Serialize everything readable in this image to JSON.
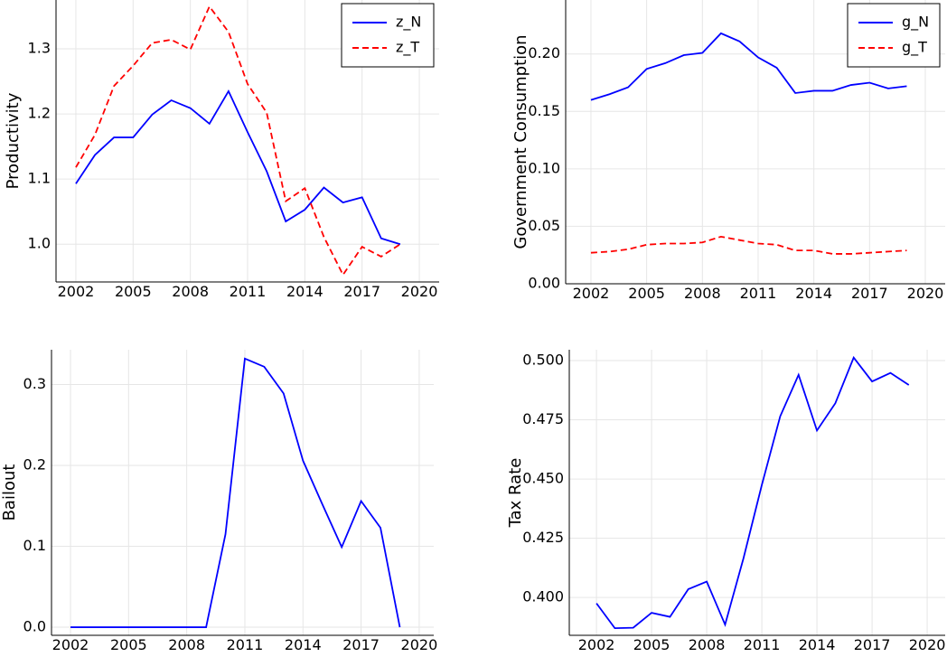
{
  "chart_data": [
    {
      "type": "line",
      "ylabel": "Productivity",
      "x": [
        2002,
        2003,
        2004,
        2005,
        2006,
        2007,
        2008,
        2009,
        2010,
        2011,
        2012,
        2013,
        2014,
        2015,
        2016,
        2017,
        2018,
        2019
      ],
      "xlim": [
        2000.96,
        2021.04
      ],
      "xticks": [
        2002,
        2005,
        2008,
        2011,
        2014,
        2017,
        2020
      ],
      "ylim": [
        0.942,
        1.375
      ],
      "yticks": [
        {
          "value": 1,
          "label": "1.0"
        },
        1.1,
        1.2,
        1.3
      ],
      "grid": true,
      "legend": "upper right",
      "series": [
        {
          "name": "z_N",
          "color": "#0000ff",
          "dash": "solid",
          "values": [
            1.093,
            1.137,
            1.164,
            1.164,
            1.199,
            1.221,
            1.209,
            1.185,
            1.235,
            1.172,
            1.112,
            1.035,
            1.053,
            1.087,
            1.064,
            1.072,
            1.009,
            1.0
          ]
        },
        {
          "name": "z_T",
          "color": "#ff0000",
          "dash": "dashed",
          "values": [
            1.118,
            1.168,
            1.243,
            1.274,
            1.309,
            1.314,
            1.299,
            1.365,
            1.326,
            1.246,
            1.202,
            1.066,
            1.086,
            1.011,
            0.953,
            0.996,
            0.981,
            1.0
          ]
        }
      ]
    },
    {
      "type": "line",
      "ylabel": "Government Consumption",
      "x": [
        2002,
        2003,
        2004,
        2005,
        2006,
        2007,
        2008,
        2009,
        2010,
        2011,
        2012,
        2013,
        2014,
        2015,
        2016,
        2017,
        2018,
        2019
      ],
      "xlim": [
        2000.64,
        2021.07
      ],
      "xticks": [
        2002,
        2005,
        2008,
        2011,
        2014,
        2017,
        2020
      ],
      "ylim": [
        0,
        0.247
      ],
      "yticks": [
        {
          "value": 0,
          "label": "0.00"
        },
        0.05,
        {
          "value": 0.1,
          "label": "0.10"
        },
        0.15,
        {
          "value": 0.2,
          "label": "0.20"
        }
      ],
      "grid": true,
      "legend": "upper right",
      "series": [
        {
          "name": "g_N",
          "color": "#0000ff",
          "dash": "solid",
          "values": [
            0.16,
            0.165,
            0.171,
            0.187,
            0.192,
            0.199,
            0.201,
            0.218,
            0.211,
            0.197,
            0.188,
            0.166,
            0.168,
            0.168,
            0.173,
            0.175,
            0.17,
            0.172
          ]
        },
        {
          "name": "g_T",
          "color": "#ff0000",
          "dash": "dashed",
          "values": [
            0.027,
            0.028,
            0.03,
            0.034,
            0.035,
            0.035,
            0.036,
            0.041,
            0.038,
            0.035,
            0.034,
            0.029,
            0.029,
            0.026,
            0.026,
            0.027,
            0.028,
            0.029
          ]
        }
      ]
    },
    {
      "type": "line",
      "ylabel": "Bailout",
      "x": [
        2002,
        2003,
        2004,
        2005,
        2006,
        2007,
        2008,
        2009,
        2010,
        2011,
        2012,
        2013,
        2014,
        2015,
        2016,
        2017,
        2018,
        2019
      ],
      "xlim": [
        2001.02,
        2020.75
      ],
      "xticks": [
        2002,
        2005,
        2008,
        2011,
        2014,
        2017,
        2020
      ],
      "ylim": [
        -0.01,
        0.343
      ],
      "yticks": [
        {
          "value": 0,
          "label": "0.0"
        },
        0.1,
        0.2,
        0.3
      ],
      "grid": true,
      "series": [
        {
          "color": "#0000ff",
          "dash": "solid",
          "values": [
            0,
            0,
            0,
            0,
            0,
            0,
            0,
            0,
            0.115,
            0.332,
            0.322,
            0.289,
            0.206,
            0.152,
            0.099,
            0.156,
            0.123,
            0
          ]
        }
      ]
    },
    {
      "type": "line",
      "ylabel": "Tax Rate",
      "x": [
        2002,
        2003,
        2004,
        2005,
        2006,
        2007,
        2008,
        2009,
        2010,
        2011,
        2012,
        2013,
        2014,
        2015,
        2016,
        2017,
        2018,
        2019
      ],
      "xlim": [
        2000.52,
        2020.98
      ],
      "xticks": [
        2002,
        2005,
        2008,
        2011,
        2014,
        2017,
        2020
      ],
      "ylim": [
        0.384,
        0.5046
      ],
      "yticks": [
        {
          "value": 0.4,
          "label": "0.400"
        },
        0.425,
        {
          "value": 0.45,
          "label": "0.450"
        },
        0.475,
        {
          "value": 0.5,
          "label": "0.500"
        }
      ],
      "grid": true,
      "series": [
        {
          "color": "#0000ff",
          "dash": "solid",
          "values": [
            0.3975,
            0.387,
            0.3872,
            0.3935,
            0.3918,
            0.4035,
            0.4067,
            0.3885,
            0.4165,
            0.4475,
            0.4765,
            0.494,
            0.4705,
            0.482,
            0.5013,
            0.4912,
            0.4948,
            0.4897
          ]
        }
      ]
    }
  ]
}
